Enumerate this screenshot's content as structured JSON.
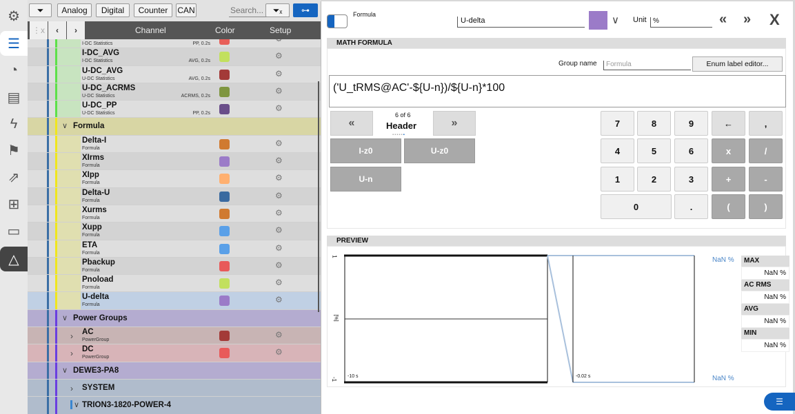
{
  "sidebar": {
    "icons": [
      "gear-icon",
      "list-icon",
      "gauge-icon",
      "report-icon",
      "lightning-icon",
      "flag-icon",
      "export-icon",
      "network-icon",
      "car-icon",
      "triangle-icon"
    ]
  },
  "toolbar": {
    "analog": "Analog",
    "digital": "Digital",
    "counter": "Counter",
    "can": "CAN",
    "search_placeholder": "Search..."
  },
  "table": {
    "headers": {
      "channel": "Channel",
      "color": "Color",
      "setup": "Setup"
    },
    "rows": [
      {
        "type": "item",
        "name": "",
        "sub": "I-DC Statistics",
        "info": "PP, 0.2s",
        "color": "#e8605a",
        "group": "green"
      },
      {
        "type": "item",
        "name": "I-DC_AVG",
        "sub": "I-DC Statistics",
        "info": "AVG, 0.2s",
        "color": "#c2e05e",
        "group": "green"
      },
      {
        "type": "item",
        "name": "U-DC_AVG",
        "sub": "U-DC Statistics",
        "info": "AVG, 0.2s",
        "color": "#a33a38",
        "group": "green"
      },
      {
        "type": "item",
        "name": "U-DC_ACRMS",
        "sub": "U-DC Statistics",
        "info": "ACRMS, 0.2s",
        "color": "#7f9640",
        "group": "green"
      },
      {
        "type": "item",
        "name": "U-DC_PP",
        "sub": "U-DC Statistics",
        "info": "PP, 0.2s",
        "color": "#6a4e8a",
        "group": "green"
      },
      {
        "type": "group",
        "name": "Formula",
        "group": "yellow"
      },
      {
        "type": "item",
        "name": "Delta-I",
        "sub": "Formula",
        "color": "#d07a30",
        "group": "yellow"
      },
      {
        "type": "item",
        "name": "XIrms",
        "sub": "Formula",
        "color": "#9b7bc8",
        "group": "yellow"
      },
      {
        "type": "item",
        "name": "XIpp",
        "sub": "Formula",
        "color": "#ffb070",
        "group": "yellow"
      },
      {
        "type": "item",
        "name": "Delta-U",
        "sub": "Formula",
        "color": "#3a6aa0",
        "group": "yellow"
      },
      {
        "type": "item",
        "name": "Xurms",
        "sub": "Formula",
        "color": "#d07a30",
        "group": "yellow"
      },
      {
        "type": "item",
        "name": "Xupp",
        "sub": "Formula",
        "color": "#5aa0e8",
        "group": "yellow"
      },
      {
        "type": "item",
        "name": "ETA",
        "sub": "Formula",
        "color": "#5aa0e8",
        "group": "yellow"
      },
      {
        "type": "item",
        "name": "Pbackup",
        "sub": "Formula",
        "color": "#e85a5a",
        "group": "yellow"
      },
      {
        "type": "item",
        "name": "Pnoload",
        "sub": "Formula",
        "color": "#c2e05e",
        "group": "yellow"
      },
      {
        "type": "item",
        "name": "U-delta",
        "sub": "Formula",
        "color": "#9b7bc8",
        "group": "yellow",
        "selected": true
      },
      {
        "type": "group",
        "name": "Power Groups",
        "group": "purple"
      },
      {
        "type": "sub",
        "name": "AC",
        "sub": "PowerGroup",
        "color": "#a33a38",
        "group": "purple",
        "bg": "#c8b4b4"
      },
      {
        "type": "sub",
        "name": "DC",
        "sub": "PowerGroup",
        "color": "#e85a5a",
        "group": "purple",
        "bg": "#d8b4b8"
      },
      {
        "type": "group",
        "name": "DEWE3-PA8",
        "group": "purple"
      },
      {
        "type": "sub",
        "name": "SYSTEM",
        "group": "purple",
        "bg": "#b0bccc"
      },
      {
        "type": "group2",
        "name": "TRION3-1820-POWER-4",
        "group": "purple"
      }
    ]
  },
  "editor": {
    "type_label": "Formula",
    "name": "U-delta",
    "color": "#9b7bc8",
    "unit_label": "Unit",
    "unit": "%",
    "math_title": "MATH FORMULA",
    "group_name_label": "Group name",
    "group_name_placeholder": "Formula",
    "enum_button": "Enum label editor...",
    "formula": "('U_tRMS@AC'-${U-n})/${U-n}*100",
    "page_indicator": "6 of 6",
    "page_title": "Header",
    "functions": [
      "I-z0",
      "U-z0",
      "U-n"
    ],
    "keys": [
      "7",
      "8",
      "9",
      "←",
      ",",
      "4",
      "5",
      "6",
      "x",
      "/",
      "1",
      "2",
      "3",
      "+",
      "-",
      "0",
      ".",
      "(",
      ")"
    ]
  },
  "preview": {
    "title": "PREVIEW",
    "y_top": "1",
    "y_bottom": "-1",
    "y_unit": "[%]",
    "x_left": "-10 s",
    "x_right": "-0.02 s",
    "val_top": "NaN %",
    "val_bottom": "NaN %",
    "stats": [
      {
        "label": "MAX",
        "value": "NaN %"
      },
      {
        "label": "AC RMS",
        "value": "NaN %"
      },
      {
        "label": "AVG",
        "value": "NaN %"
      },
      {
        "label": "MIN",
        "value": "NaN %"
      }
    ]
  }
}
